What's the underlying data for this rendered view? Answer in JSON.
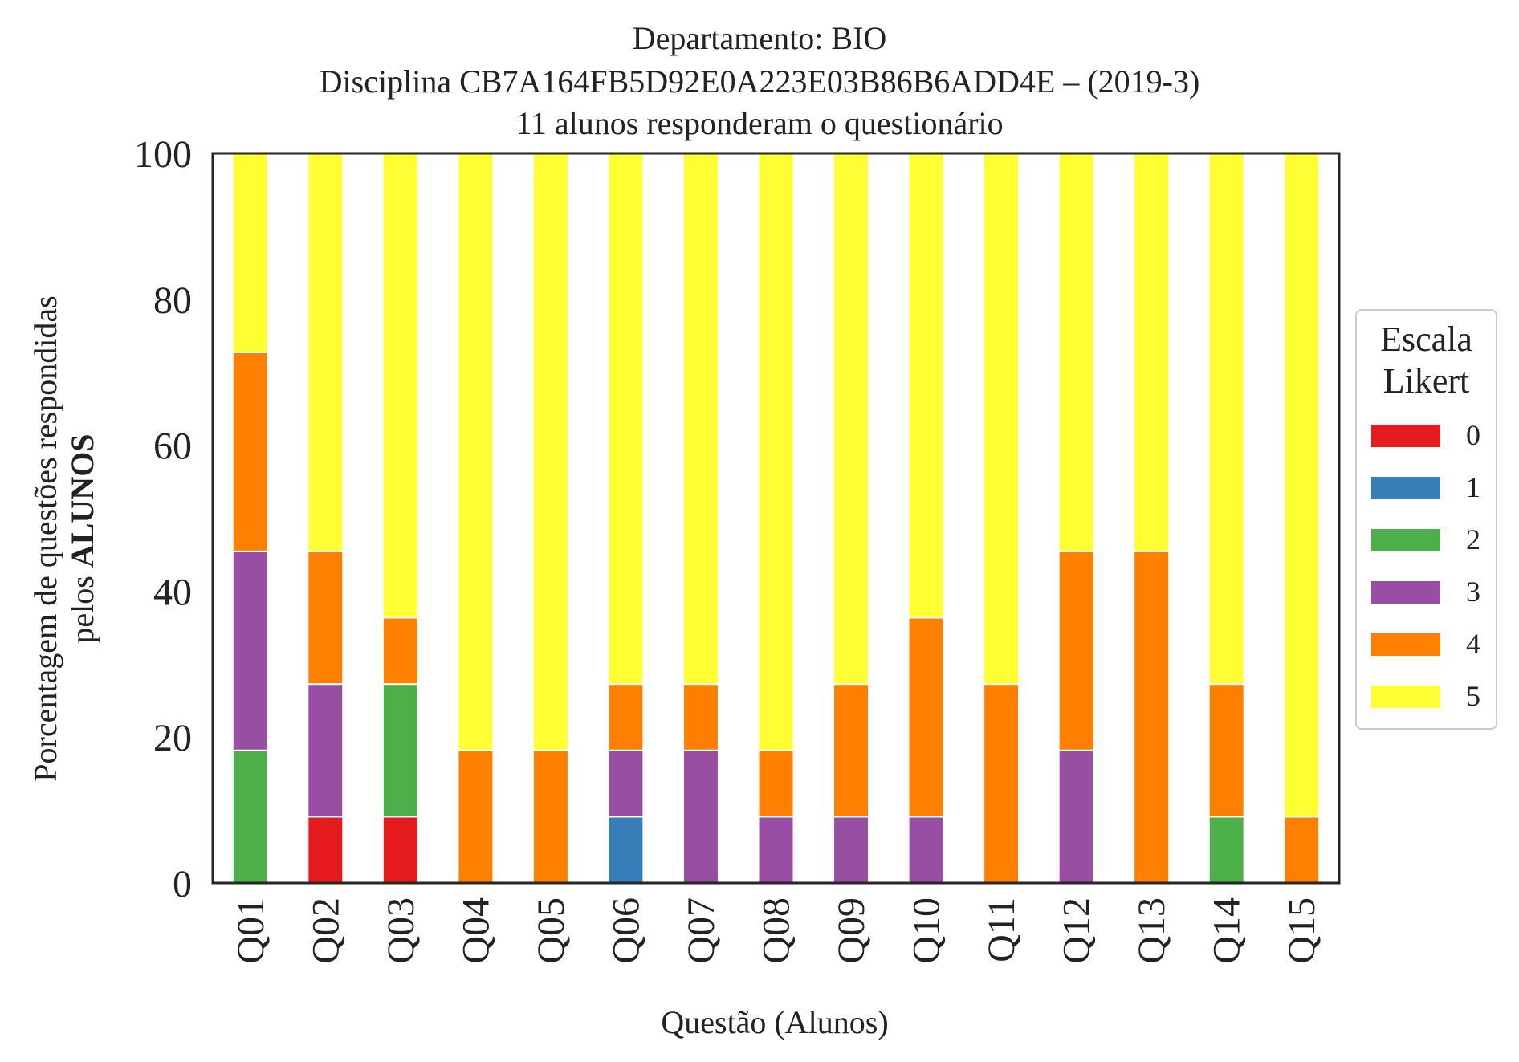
{
  "chart_data": {
    "type": "bar",
    "stacked": true,
    "title_lines": [
      "Departamento: BIO",
      "Disciplina CB7A164FB5D92E0A223E03B86B6ADD4E – (2019-3)",
      "11 alunos responderam o questionário"
    ],
    "xlabel": "Questão (Alunos)",
    "ylabel_line1": "Porcentagem de questões respondidas",
    "ylabel_line2_prefix": "pelos ",
    "ylabel_line2_bold": "ALUNOS",
    "ylim": [
      0,
      100
    ],
    "yticks": [
      "0",
      "20",
      "40",
      "60",
      "80",
      "100"
    ],
    "categories": [
      "Q01",
      "Q02",
      "Q03",
      "Q04",
      "Q05",
      "Q06",
      "Q07",
      "Q08",
      "Q09",
      "Q10",
      "Q11",
      "Q12",
      "Q13",
      "Q14",
      "Q15"
    ],
    "legend_title_line1": "Escala",
    "legend_title_line2": "Likert",
    "legend_position": "right",
    "series": [
      {
        "name": "0",
        "color": "#e41a1c",
        "values": [
          0,
          9.09,
          9.09,
          0,
          0,
          0,
          0,
          0,
          0,
          0,
          0,
          0,
          0,
          0,
          0
        ]
      },
      {
        "name": "1",
        "color": "#377eb8",
        "values": [
          0,
          0,
          0,
          0,
          0,
          9.09,
          0,
          0,
          0,
          0,
          0,
          0,
          0,
          0,
          0
        ]
      },
      {
        "name": "2",
        "color": "#4daf4a",
        "values": [
          18.18,
          0,
          18.18,
          0,
          0,
          0,
          0,
          0,
          0,
          0,
          0,
          0,
          0,
          9.09,
          0
        ]
      },
      {
        "name": "3",
        "color": "#984ea3",
        "values": [
          27.27,
          18.18,
          0,
          0,
          0,
          9.09,
          18.18,
          9.09,
          9.09,
          9.09,
          0,
          18.18,
          0,
          0,
          0
        ]
      },
      {
        "name": "4",
        "color": "#ff7f00",
        "values": [
          27.27,
          18.18,
          9.09,
          18.18,
          18.18,
          9.09,
          9.09,
          9.09,
          18.18,
          27.27,
          27.27,
          27.27,
          45.45,
          18.18,
          9.09
        ]
      },
      {
        "name": "5",
        "color": "#ffff33",
        "values": [
          27.27,
          54.55,
          63.64,
          81.82,
          81.82,
          72.73,
          72.73,
          81.82,
          72.73,
          63.64,
          72.73,
          54.55,
          54.55,
          72.73,
          90.91
        ]
      }
    ]
  }
}
